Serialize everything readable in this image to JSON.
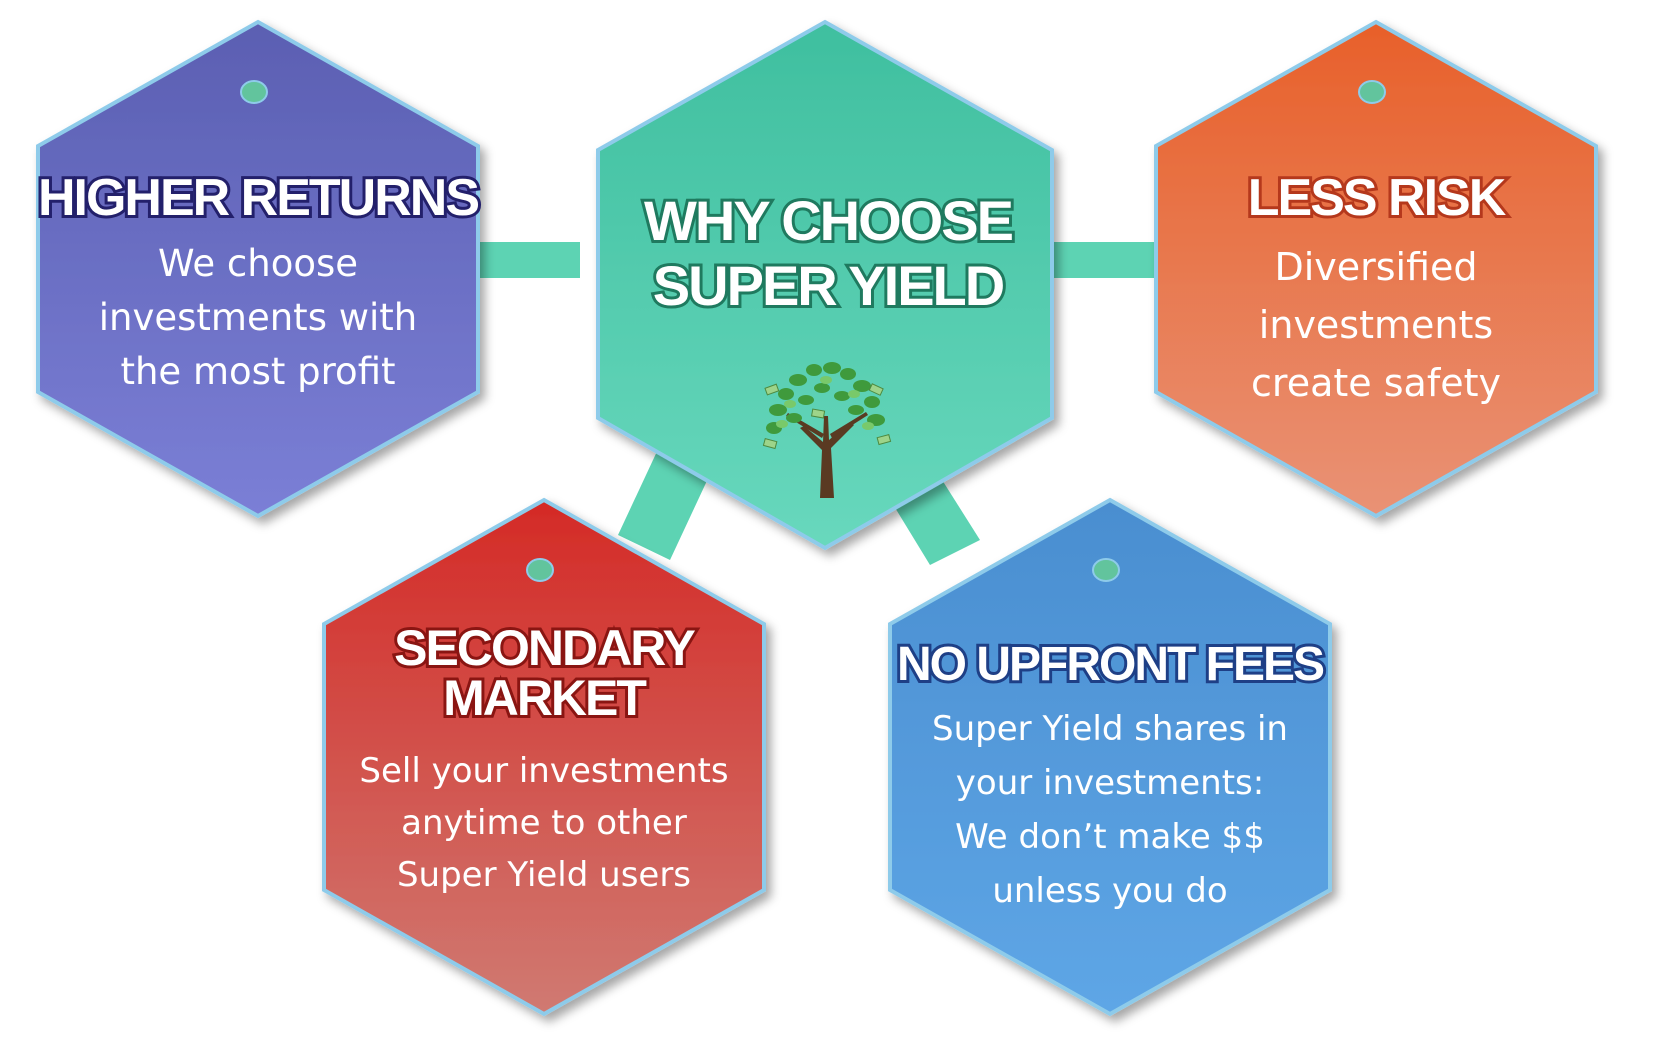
{
  "center": {
    "title_line1": "WHY CHOOSE",
    "title_line2": "SUPER YIELD",
    "color_top": "#3fbf9f",
    "color_bottom": "#68d8bd",
    "icon": "money-tree-icon"
  },
  "higher_returns": {
    "title": "HIGHER RETURNS",
    "body_line1": "We choose",
    "body_line2": "investments with",
    "body_line3": "the most profit",
    "color_top": "#5b5fb2",
    "color_bottom": "#7b7fd6"
  },
  "less_risk": {
    "title": "LESS RISK",
    "body_line1": "Diversified",
    "body_line2": "investments",
    "body_line3": "create safety",
    "color_top": "#e8602a",
    "color_bottom": "#e99275"
  },
  "secondary_market": {
    "title_line1": "SECONDARY",
    "title_line2": "MARKET",
    "body_line1": "Sell your investments",
    "body_line2": "anytime to other",
    "body_line3": "Super Yield users",
    "color_top": "#d42a26",
    "color_bottom": "#d07a72"
  },
  "no_upfront_fees": {
    "title": "NO UPFRONT FEES",
    "body_line1": "Super Yield shares in",
    "body_line2": "your investments:",
    "body_line3": "We don’t make $$",
    "body_line4": "unless you do",
    "color_top": "#4a8ed0",
    "color_bottom": "#5ea6e6"
  },
  "connector_color": "#5dd3b3",
  "border_color": "#8ecbea"
}
